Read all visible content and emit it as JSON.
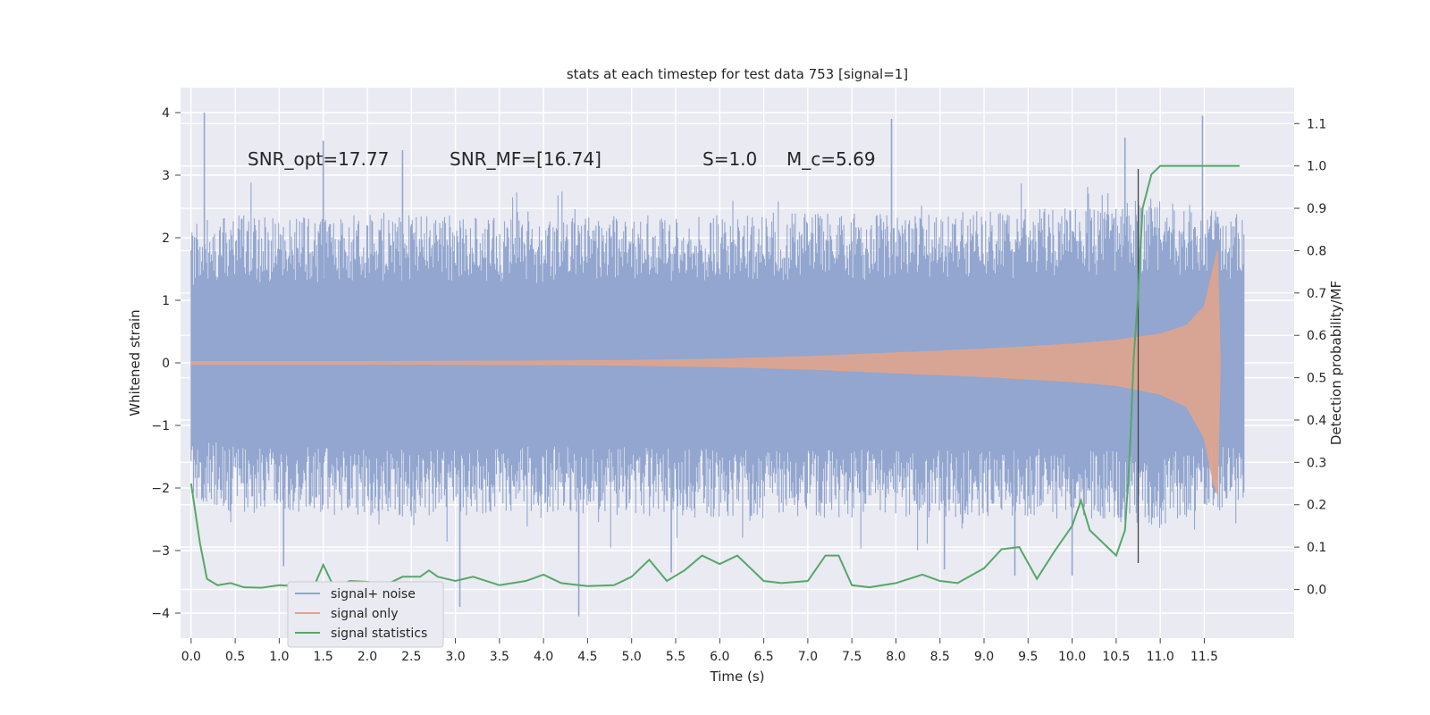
{
  "chart_data": {
    "type": "line",
    "title": "stats at each timestep for test data 753 [signal=1]",
    "xlabel": "Time (s)",
    "ylabel": "Whitened strain",
    "y2label": "Detection probability/MF",
    "xlim": [
      -0.12,
      12.52
    ],
    "ylim": [
      -4.4,
      4.4
    ],
    "y2lim": [
      -0.115,
      1.185
    ],
    "x_ticks": [
      "0.0",
      "0.5",
      "1.0",
      "1.5",
      "2.0",
      "2.5",
      "3.0",
      "3.5",
      "4.0",
      "4.5",
      "5.0",
      "5.5",
      "6.0",
      "6.5",
      "7.0",
      "7.5",
      "8.0",
      "8.5",
      "9.0",
      "9.5",
      "10.0",
      "10.5",
      "11.0",
      "11.5"
    ],
    "y_ticks": [
      "4",
      "3",
      "2",
      "1",
      "0",
      "−1",
      "−2",
      "−3",
      "−4"
    ],
    "y2_ticks": [
      "1.1",
      "1.0",
      "0.9",
      "0.8",
      "0.7",
      "0.6",
      "0.5",
      "0.4",
      "0.3",
      "0.2",
      "0.1",
      "0.0"
    ],
    "grid": true,
    "legend_position": "lower-left",
    "annotations": [
      {
        "text": "SNR_opt=17.77"
      },
      {
        "text": "SNR_MF=[16.74]"
      },
      {
        "text": "S=1.0"
      },
      {
        "text": "M_c=5.69"
      }
    ],
    "vline_x": 10.75,
    "vline_ymin": -3.2,
    "vline_ymax": 3.1,
    "series": [
      {
        "name": "signal+ noise",
        "color": "#92a6cf",
        "band_x": [
          0.0,
          0.5,
          1.0,
          2.0,
          4.0,
          6.0,
          8.0,
          10.0,
          11.0,
          11.95
        ],
        "band_upper": [
          2.2,
          2.4,
          2.3,
          2.4,
          2.3,
          2.4,
          2.4,
          2.5,
          2.6,
          2.4
        ],
        "band_lower": [
          -2.2,
          -2.4,
          -2.4,
          -2.5,
          -2.4,
          -2.5,
          -2.5,
          -2.5,
          -2.6,
          -2.3
        ],
        "spikes": [
          {
            "x": 0.15,
            "y": 4.0
          },
          {
            "x": 1.5,
            "y": 3.55
          },
          {
            "x": 2.4,
            "y": 3.4
          },
          {
            "x": 3.05,
            "y": -3.9
          },
          {
            "x": 4.4,
            "y": -4.05
          },
          {
            "x": 7.95,
            "y": 3.9
          },
          {
            "x": 9.35,
            "y": -3.4
          },
          {
            "x": 10.0,
            "y": -3.4
          },
          {
            "x": 10.6,
            "y": 3.6
          },
          {
            "x": 11.48,
            "y": 3.95
          },
          {
            "x": 5.45,
            "y": -3.35
          },
          {
            "x": 8.55,
            "y": -3.3
          },
          {
            "x": 1.05,
            "y": -3.25
          }
        ]
      },
      {
        "name": "signal only",
        "color": "#e0a48c",
        "x": [
          0.0,
          2.0,
          4.0,
          5.0,
          6.0,
          7.0,
          8.0,
          9.0,
          10.0,
          10.5,
          11.0,
          11.3,
          11.5,
          11.6,
          11.65,
          11.68
        ],
        "upper": [
          0.02,
          0.02,
          0.03,
          0.04,
          0.06,
          0.1,
          0.16,
          0.22,
          0.3,
          0.36,
          0.46,
          0.6,
          0.9,
          1.5,
          1.8,
          0.1
        ],
        "lower": [
          -0.02,
          -0.02,
          -0.03,
          -0.04,
          -0.06,
          -0.1,
          -0.16,
          -0.22,
          -0.3,
          -0.36,
          -0.5,
          -0.7,
          -1.2,
          -1.9,
          -2.1,
          -0.1
        ]
      },
      {
        "name": "signal statistics",
        "color": "#55a868",
        "x": [
          0.0,
          0.1,
          0.18,
          0.3,
          0.45,
          0.6,
          0.8,
          1.0,
          1.2,
          1.4,
          1.5,
          1.6,
          1.7,
          1.8,
          2.0,
          2.2,
          2.4,
          2.6,
          2.7,
          2.8,
          3.0,
          3.2,
          3.5,
          3.8,
          4.0,
          4.2,
          4.5,
          4.8,
          5.0,
          5.2,
          5.4,
          5.6,
          5.8,
          6.0,
          6.2,
          6.5,
          6.7,
          7.0,
          7.2,
          7.35,
          7.5,
          7.7,
          8.0,
          8.3,
          8.5,
          8.7,
          9.0,
          9.2,
          9.4,
          9.6,
          9.8,
          10.0,
          10.1,
          10.2,
          10.4,
          10.5,
          10.6,
          10.65,
          10.7,
          10.75,
          10.8,
          10.9,
          11.0,
          11.1,
          11.3,
          11.6,
          11.9
        ],
        "y": [
          0.25,
          0.11,
          0.025,
          0.01,
          0.015,
          0.005,
          0.004,
          0.01,
          0.008,
          0.01,
          0.058,
          0.015,
          0.01,
          0.02,
          0.018,
          0.01,
          0.03,
          0.03,
          0.045,
          0.03,
          0.02,
          0.03,
          0.01,
          0.02,
          0.035,
          0.015,
          0.008,
          0.01,
          0.03,
          0.07,
          0.02,
          0.045,
          0.08,
          0.06,
          0.08,
          0.02,
          0.015,
          0.02,
          0.08,
          0.08,
          0.01,
          0.005,
          0.015,
          0.035,
          0.02,
          0.015,
          0.05,
          0.095,
          0.1,
          0.025,
          0.09,
          0.15,
          0.21,
          0.14,
          0.1,
          0.08,
          0.14,
          0.3,
          0.55,
          0.7,
          0.9,
          0.98,
          1.0,
          1.0,
          1.0,
          1.0,
          1.0
        ]
      }
    ]
  }
}
